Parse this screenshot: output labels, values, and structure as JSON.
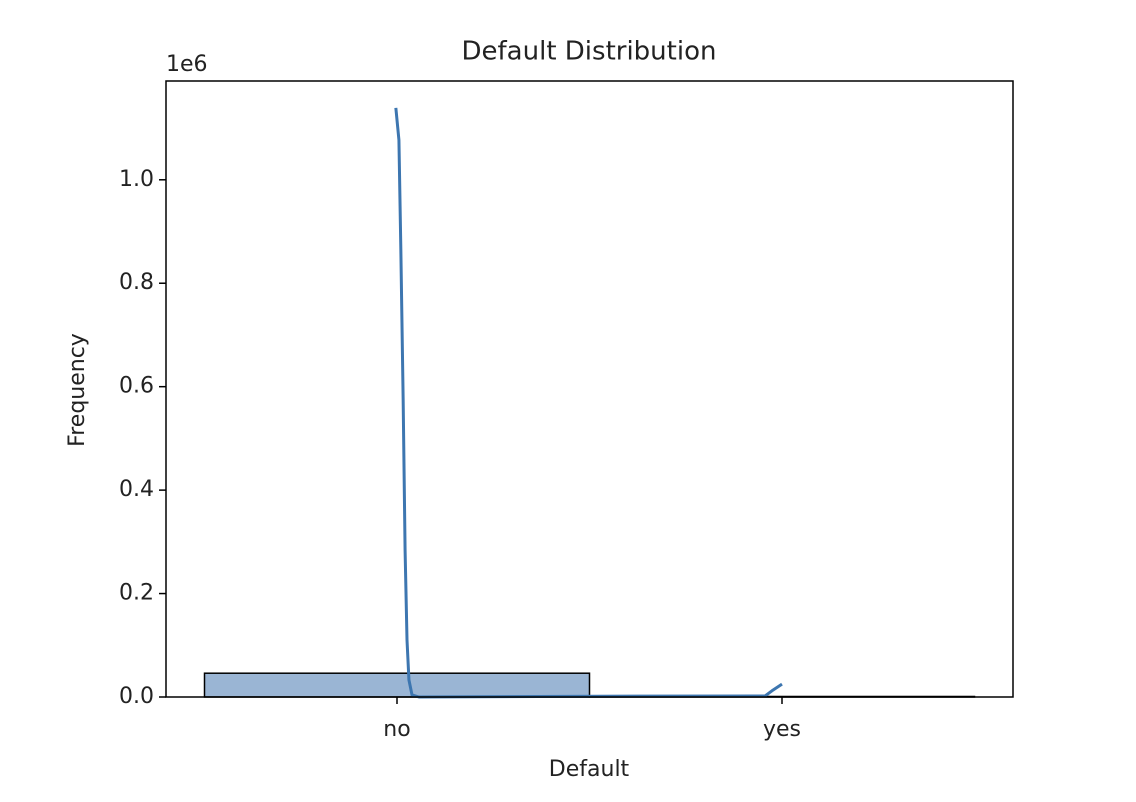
{
  "chart_data": {
    "type": "histogram",
    "title": "Default Distribution",
    "xlabel": "Default",
    "ylabel": "Frequency",
    "y_offset_text": "1e6",
    "bins": [
      -0.5,
      0.5,
      1.5
    ],
    "values": [
      46000,
      1000
    ],
    "color": "#9ab5d4",
    "edgecolor": "#000000",
    "line": {
      "x": [
        -0.003,
        0.005,
        0.01,
        0.016,
        0.021,
        0.026,
        0.031,
        0.039,
        0.057,
        0.526,
        0.956,
        0.974,
        1.0
      ],
      "values": [
        1139000,
        1077000,
        864000,
        574000,
        284000,
        110000,
        33000,
        4000,
        0,
        1500,
        2000,
        12000,
        25000
      ],
      "color": "#3d76b0"
    },
    "xlim": [
      -0.6,
      1.6
    ],
    "ylim": [
      0,
      1191000
    ],
    "xticks": [
      {
        "value": 0,
        "label": "no"
      },
      {
        "value": 1,
        "label": "yes"
      }
    ],
    "yticks": [
      {
        "value": 0,
        "label": "0.0"
      },
      {
        "value": 200000,
        "label": "0.2"
      },
      {
        "value": 400000,
        "label": "0.4"
      },
      {
        "value": 600000,
        "label": "0.6"
      },
      {
        "value": 800000,
        "label": "0.8"
      },
      {
        "value": 1000000,
        "label": "1.0"
      }
    ]
  }
}
